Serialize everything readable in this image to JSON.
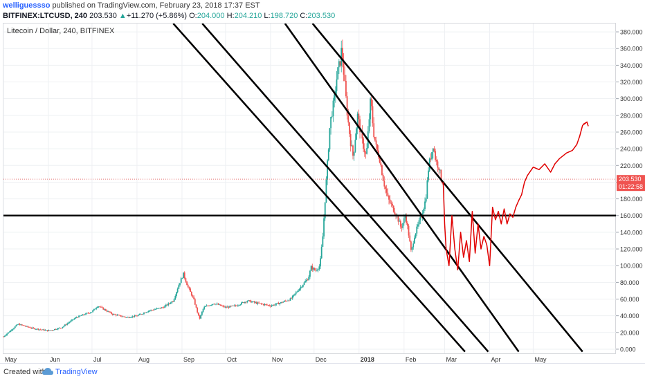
{
  "header": {
    "user": "welliguessso",
    "published": "published on TradingView.com, February 23, 2018 17:37 EST",
    "symbol": "BITFINEX:LTCUSD, 240",
    "last": "203.530",
    "change_arrow": "▲",
    "change": "+11.270 (+5.86%)",
    "o_label": "O:",
    "o_val": "204.000",
    "h_label": "H:",
    "h_val": "204.210",
    "l_label": "L:",
    "l_val": "198.720",
    "c_label": "C:",
    "c_val": "203.530"
  },
  "chart_title": "Litecoin / Dollar, 240, BITFINEX",
  "footer": {
    "created_with": "Created with",
    "brand": "TradingView",
    "logo_icon": "tradingview-cloud-icon"
  },
  "colors": {
    "candle_up": "#26a69a",
    "candle_down": "#ef5350",
    "trendline": "#000000",
    "projection": "#e00000",
    "price_line": "#e57373",
    "price_tag": "#ef5350",
    "grid": "#eef0f3"
  },
  "chart_data": {
    "type": "candlestick",
    "title": "Litecoin / Dollar, 240, BITFINEX",
    "ylim": [
      -5,
      390
    ],
    "y_ticks": [
      "0.000",
      "20.000",
      "40.000",
      "60.000",
      "80.000",
      "100.000",
      "120.000",
      "140.000",
      "160.000",
      "180.000",
      "200.000",
      "220.000",
      "240.000",
      "260.000",
      "280.000",
      "300.000",
      "320.000",
      "340.000",
      "360.000",
      "380.000"
    ],
    "y_tick_values": [
      0,
      20,
      40,
      60,
      80,
      100,
      120,
      140,
      160,
      180,
      200,
      220,
      240,
      260,
      280,
      300,
      320,
      340,
      360,
      380
    ],
    "x_ticks": [
      "May",
      "Jun",
      "Jul",
      "Aug",
      "Sep",
      "Oct",
      "Nov",
      "Dec",
      "2018",
      "Feb",
      "Mar",
      "Apr",
      "May"
    ],
    "x_tick_days": [
      0,
      31,
      61,
      92,
      123,
      153,
      184,
      214,
      245,
      276,
      304,
      335,
      365
    ],
    "x_range_days": [
      0,
      422
    ],
    "current_price": {
      "value": 203.53,
      "label": "203.530",
      "countdown": "01:22:58"
    },
    "horizontal_line": 160,
    "price_path": [
      [
        0,
        15
      ],
      [
        10,
        30
      ],
      [
        20,
        25
      ],
      [
        31,
        22
      ],
      [
        40,
        26
      ],
      [
        50,
        38
      ],
      [
        61,
        45
      ],
      [
        65,
        52
      ],
      [
        75,
        42
      ],
      [
        85,
        38
      ],
      [
        92,
        40
      ],
      [
        100,
        46
      ],
      [
        110,
        50
      ],
      [
        117,
        58
      ],
      [
        121,
        78
      ],
      [
        124,
        90
      ],
      [
        127,
        75
      ],
      [
        131,
        60
      ],
      [
        135,
        36
      ],
      [
        138,
        50
      ],
      [
        145,
        55
      ],
      [
        153,
        50
      ],
      [
        160,
        52
      ],
      [
        168,
        58
      ],
      [
        175,
        55
      ],
      [
        184,
        52
      ],
      [
        190,
        55
      ],
      [
        198,
        60
      ],
      [
        205,
        75
      ],
      [
        210,
        85
      ],
      [
        212,
        98
      ],
      [
        215,
        94
      ],
      [
        218,
        100
      ],
      [
        220,
        135
      ],
      [
        222,
        190
      ],
      [
        225,
        270
      ],
      [
        228,
        300
      ],
      [
        230,
        330
      ],
      [
        232,
        345
      ],
      [
        233,
        360
      ],
      [
        235,
        320
      ],
      [
        237,
        280
      ],
      [
        239,
        250
      ],
      [
        241,
        230
      ],
      [
        244,
        280
      ],
      [
        247,
        250
      ],
      [
        250,
        230
      ],
      [
        253,
        300
      ],
      [
        255,
        260
      ],
      [
        257,
        240
      ],
      [
        259,
        230
      ],
      [
        262,
        200
      ],
      [
        265,
        180
      ],
      [
        268,
        170
      ],
      [
        271,
        160
      ],
      [
        274,
        145
      ],
      [
        277,
        160
      ],
      [
        279,
        140
      ],
      [
        281,
        115
      ],
      [
        283,
        135
      ],
      [
        285,
        145
      ],
      [
        288,
        160
      ],
      [
        291,
        180
      ],
      [
        293,
        220
      ],
      [
        295,
        235
      ],
      [
        296,
        245
      ],
      [
        298,
        225
      ],
      [
        300,
        218
      ],
      [
        302,
        200
      ],
      [
        303,
        203.53
      ]
    ],
    "channel_lines": [
      [
        [
          117,
          390
        ],
        [
          318,
          -3
        ]
      ],
      [
        [
          137,
          390
        ],
        [
          334,
          -3
        ]
      ],
      [
        [
          194,
          390
        ],
        [
          355,
          -3
        ]
      ],
      [
        [
          213,
          390
        ],
        [
          399,
          -3
        ]
      ]
    ],
    "projection_path": [
      [
        303,
        200
      ],
      [
        304,
        150
      ],
      [
        305,
        120
      ],
      [
        307,
        100
      ],
      [
        309,
        160
      ],
      [
        311,
        120
      ],
      [
        313,
        95
      ],
      [
        315,
        140
      ],
      [
        317,
        110
      ],
      [
        319,
        130
      ],
      [
        321,
        105
      ],
      [
        323,
        165
      ],
      [
        325,
        115
      ],
      [
        327,
        150
      ],
      [
        329,
        120
      ],
      [
        331,
        135
      ],
      [
        333,
        125
      ],
      [
        335,
        100
      ],
      [
        337,
        170
      ],
      [
        339,
        155
      ],
      [
        341,
        165
      ],
      [
        343,
        150
      ],
      [
        345,
        168
      ],
      [
        347,
        150
      ],
      [
        349,
        162
      ],
      [
        351,
        158
      ],
      [
        353,
        170
      ],
      [
        355,
        178
      ],
      [
        357,
        185
      ],
      [
        359,
        200
      ],
      [
        361,
        208
      ],
      [
        365,
        218
      ],
      [
        369,
        215
      ],
      [
        373,
        222
      ],
      [
        377,
        212
      ],
      [
        380,
        222
      ],
      [
        383,
        228
      ],
      [
        388,
        235
      ],
      [
        392,
        238
      ],
      [
        395,
        245
      ],
      [
        397,
        255
      ],
      [
        399,
        268
      ],
      [
        402,
        272
      ]
    ]
  }
}
